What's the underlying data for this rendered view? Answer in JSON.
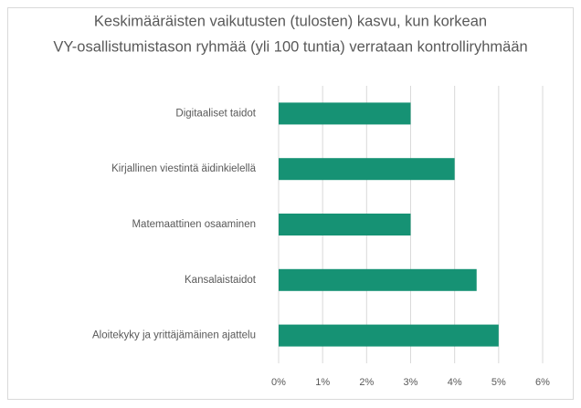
{
  "chart_data": {
    "type": "barh",
    "title": [
      "Keskimääräisten vaikutusten (tulosten) kasvu, kun korkean",
      "VY-osallistumistason ryhmää (yli 100 tuntia) verrataan kontrolliryhmään"
    ],
    "categories": [
      "Digitaaliset taidot",
      "Kirjallinen viestintä äidinkielellä",
      "Matemaattinen osaaminen",
      "Kansalaistaidot",
      "Aloitekyky ja yrittäjämäinen ajattelu"
    ],
    "values": [
      3,
      4,
      3,
      4.5,
      5
    ],
    "color": "#169274",
    "xlim": [
      0,
      6
    ],
    "xticks": [
      {
        "value": 0,
        "label": "0%"
      },
      {
        "value": 1,
        "label": "1%"
      },
      {
        "value": 2,
        "label": "2%"
      },
      {
        "value": 3,
        "label": "3%"
      },
      {
        "value": 4,
        "label": "4%"
      },
      {
        "value": 5,
        "label": "5%"
      },
      {
        "value": 6,
        "label": "6%"
      }
    ],
    "grid": true
  }
}
